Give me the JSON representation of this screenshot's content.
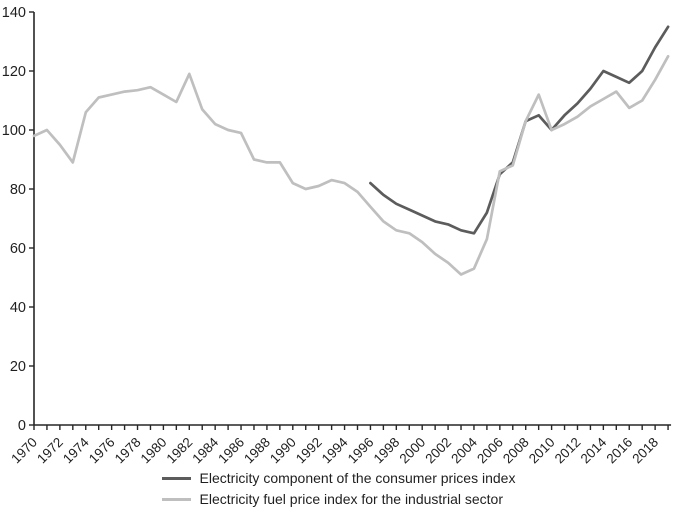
{
  "chart_data": {
    "type": "line",
    "title": "",
    "xlabel": "",
    "ylabel": "",
    "x": [
      1970,
      1971,
      1972,
      1973,
      1974,
      1975,
      1976,
      1977,
      1978,
      1979,
      1980,
      1981,
      1982,
      1983,
      1984,
      1985,
      1986,
      1987,
      1988,
      1989,
      1990,
      1991,
      1992,
      1993,
      1994,
      1995,
      1996,
      1997,
      1998,
      1999,
      2000,
      2001,
      2002,
      2003,
      2004,
      2005,
      2006,
      2007,
      2008,
      2009,
      2010,
      2011,
      2012,
      2013,
      2014,
      2015,
      2016,
      2017,
      2018,
      2019
    ],
    "x_tick_labels": [
      "1970",
      "1972",
      "1974",
      "1976",
      "1978",
      "1980",
      "1982",
      "1984",
      "1986",
      "1988",
      "1990",
      "1992",
      "1994",
      "1996",
      "1998",
      "2000",
      "2002",
      "2004",
      "2006",
      "2008",
      "2010",
      "2012",
      "2014",
      "2016",
      "2018"
    ],
    "y_ticks": [
      0,
      20,
      40,
      60,
      80,
      100,
      120,
      140
    ],
    "ylim": [
      0,
      140
    ],
    "grid": false,
    "legend_position": "bottom",
    "axis_color": "#262626",
    "tick_label_color": "#1f1f1f",
    "series": [
      {
        "name": "Electricity component of the consumer prices index",
        "color": "#5c5c5c",
        "values": [
          null,
          null,
          null,
          null,
          null,
          null,
          null,
          null,
          null,
          null,
          null,
          null,
          null,
          null,
          null,
          null,
          null,
          null,
          null,
          null,
          null,
          null,
          null,
          null,
          null,
          null,
          82,
          78,
          75,
          73,
          71,
          69,
          68,
          66,
          65,
          72,
          85,
          89,
          103,
          105,
          100,
          105,
          109,
          114,
          120,
          118,
          116,
          120,
          128,
          135
        ]
      },
      {
        "name": "Electricity fuel price index for the industrial sector",
        "color": "#bfbfbf",
        "values": [
          98,
          100,
          95,
          89,
          106,
          111,
          112,
          113,
          113.5,
          114.5,
          112,
          109.5,
          119,
          107,
          102,
          100,
          99,
          90,
          89,
          89,
          82,
          80,
          81,
          83,
          82,
          79,
          74,
          69,
          66,
          65,
          62,
          58,
          55,
          51,
          53,
          63,
          86,
          88,
          103,
          112,
          100,
          102,
          104.5,
          108,
          110.5,
          113,
          107.5,
          110,
          117,
          125
        ]
      }
    ]
  }
}
